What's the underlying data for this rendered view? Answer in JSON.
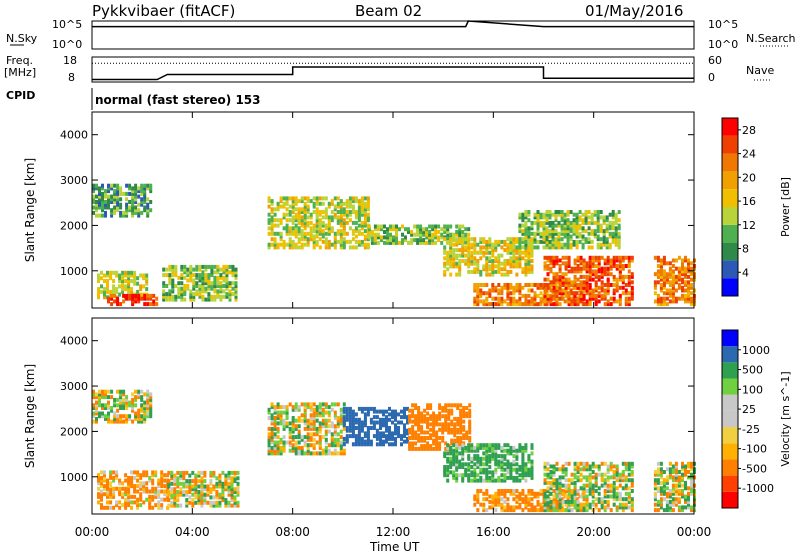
{
  "header": {
    "station": "Pykkvibaer (fitACF)",
    "beam": "Beam 02",
    "date": "01/May/2016"
  },
  "panels": {
    "sky_label": "N.Sky",
    "search_label": "N.Search",
    "sky_ticks": [
      "10^5",
      "10^0"
    ],
    "search_ticks": [
      "10^5",
      "10^0"
    ],
    "freq_label_1": "Freq.",
    "freq_label_2": "[MHz]",
    "freq_ticks": [
      "18",
      "8"
    ],
    "nave_label": "Nave",
    "nave_ticks": [
      "60",
      "0"
    ],
    "cpid_label": "CPID",
    "cpid_text": "normal (fast stereo) 153"
  },
  "colors": {
    "power": [
      "#0000ff",
      "#2b59b5",
      "#2f8a4a",
      "#4fb04f",
      "#b8d43a",
      "#f0c000",
      "#f0a000",
      "#f07800",
      "#f04000",
      "#ff0000"
    ],
    "velocity": [
      "#ff0000",
      "#ff4000",
      "#ff8000",
      "#ffb000",
      "#f0d040",
      "#c8c8c8",
      "#c8c8c8",
      "#70d040",
      "#2fa050",
      "#2b6ab0",
      "#0000ff"
    ]
  },
  "chart_data": [
    {
      "type": "heatmap",
      "name": "power",
      "title": "",
      "xlabel": "Time UT",
      "ylabel": "Slant Range [km]",
      "xlim": [
        "00:00",
        "00:00"
      ],
      "x_ticks": [
        "00:00",
        "04:00",
        "08:00",
        "12:00",
        "16:00",
        "20:00",
        "00:00"
      ],
      "ylim": [
        180,
        4500
      ],
      "y_ticks": [
        1000,
        2000,
        3000,
        4000
      ],
      "colorbar": {
        "label": "Power [dB]",
        "ticks": [
          4,
          8,
          12,
          16,
          20,
          24,
          28
        ],
        "range": [
          0,
          30
        ]
      },
      "regions": [
        {
          "t0": 0.0,
          "t1": 2.4,
          "r0": 2200,
          "r1": 2900,
          "value": 9
        },
        {
          "t0": 0.2,
          "t1": 2.2,
          "r0": 400,
          "r1": 1000,
          "value": 14
        },
        {
          "t0": 0.6,
          "t1": 2.6,
          "r0": 250,
          "r1": 450,
          "value": 26
        },
        {
          "t0": 2.8,
          "t1": 5.8,
          "r0": 350,
          "r1": 1100,
          "value": 12
        },
        {
          "t0": 7.0,
          "t1": 11.0,
          "r0": 1500,
          "r1": 2600,
          "value": 14
        },
        {
          "t0": 11.0,
          "t1": 15.0,
          "r0": 1600,
          "r1": 2000,
          "value": 12
        },
        {
          "t0": 14.0,
          "t1": 17.5,
          "r0": 900,
          "r1": 1700,
          "value": 16
        },
        {
          "t0": 15.2,
          "t1": 19.6,
          "r0": 250,
          "r1": 700,
          "value": 22
        },
        {
          "t0": 17.0,
          "t1": 21.0,
          "r0": 1500,
          "r1": 2300,
          "value": 12
        },
        {
          "t0": 18.0,
          "t1": 21.6,
          "r0": 250,
          "r1": 1300,
          "value": 24
        },
        {
          "t0": 22.4,
          "t1": 24.0,
          "r0": 250,
          "r1": 1300,
          "value": 22
        }
      ]
    },
    {
      "type": "heatmap",
      "name": "velocity",
      "title": "",
      "xlabel": "Time UT",
      "ylabel": "Slant Range [km]",
      "xlim": [
        "00:00",
        "00:00"
      ],
      "x_ticks": [
        "00:00",
        "04:00",
        "08:00",
        "12:00",
        "16:00",
        "20:00",
        "00:00"
      ],
      "ylim": [
        180,
        4500
      ],
      "y_ticks": [
        1000,
        2000,
        3000,
        4000
      ],
      "colorbar": {
        "label": "Velocity [m s^-1]",
        "ticks": [
          1000,
          500,
          100,
          25,
          -25,
          -100,
          -500,
          -1000
        ]
      },
      "regions": [
        {
          "t0": 0.0,
          "t1": 2.4,
          "r0": 2200,
          "r1": 2900,
          "value": 0
        },
        {
          "t0": 0.2,
          "t1": 3.0,
          "r0": 300,
          "r1": 1100,
          "value": -150
        },
        {
          "t0": 3.0,
          "t1": 5.8,
          "r0": 350,
          "r1": 1100,
          "value": -20
        },
        {
          "t0": 7.0,
          "t1": 10.0,
          "r0": 1500,
          "r1": 2600,
          "value": 0
        },
        {
          "t0": 10.0,
          "t1": 12.6,
          "r0": 1700,
          "r1": 2500,
          "value": 700
        },
        {
          "t0": 12.6,
          "t1": 15.0,
          "r0": 1600,
          "r1": 2600,
          "value": -300
        },
        {
          "t0": 14.0,
          "t1": 17.5,
          "r0": 900,
          "r1": 1700,
          "value": 200
        },
        {
          "t0": 15.2,
          "t1": 19.6,
          "r0": 250,
          "r1": 700,
          "value": -200
        },
        {
          "t0": 18.0,
          "t1": 21.6,
          "r0": 250,
          "r1": 1300,
          "value": 50
        },
        {
          "t0": 22.4,
          "t1": 24.0,
          "r0": 250,
          "r1": 1300,
          "value": 0
        }
      ]
    },
    {
      "type": "line",
      "name": "noise",
      "series": [
        {
          "name": "N.Sky",
          "x": [
            0,
            5,
            10,
            14.9,
            15,
            18,
            24
          ],
          "y": [
            4,
            4,
            4,
            4,
            5,
            4,
            4
          ]
        }
      ]
    },
    {
      "type": "line",
      "name": "frequency",
      "series": [
        {
          "name": "Freq",
          "x": [
            0,
            2.6,
            3.0,
            8.0,
            8.0,
            18.0,
            18.0,
            24
          ],
          "y": [
            9,
            9,
            11,
            11,
            14,
            14,
            9.5,
            9.5
          ]
        },
        {
          "name": "Nave",
          "x": [
            0,
            24
          ],
          "y": [
            45,
            45
          ]
        }
      ]
    }
  ]
}
